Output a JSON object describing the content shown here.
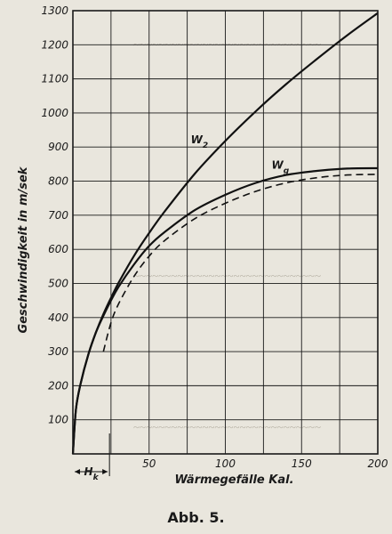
{
  "caption": "Abb. 5.",
  "chart_data": {
    "type": "line",
    "xlabel": "Wärmegefälle Kal.",
    "ylabel": "Geschwindigkeit in m/sek",
    "xlim": [
      0,
      200
    ],
    "ylim": [
      0,
      1300
    ],
    "xticks": [
      50,
      100,
      150,
      200
    ],
    "yticks": [
      100,
      200,
      300,
      400,
      500,
      600,
      700,
      800,
      900,
      1000,
      1100,
      1200,
      1300
    ],
    "grid": true,
    "annotation": {
      "label": "Hk",
      "x_from": 0,
      "x_to": 24
    },
    "series": [
      {
        "name": "W2",
        "style": "solid",
        "x": [
          0,
          2,
          5,
          10,
          15,
          20,
          25,
          30,
          40,
          50,
          60,
          80,
          100,
          120,
          140,
          160,
          180,
          200
        ],
        "y": [
          0,
          130,
          205,
          290,
          355,
          410,
          458,
          502,
          580,
          648,
          710,
          822,
          918,
          1005,
          1085,
          1158,
          1228,
          1293
        ]
      },
      {
        "name": "Wg",
        "style": "solid",
        "x": [
          0,
          2,
          5,
          10,
          15,
          20,
          25,
          30,
          40,
          50,
          60,
          80,
          100,
          120,
          140,
          160,
          180,
          200
        ],
        "y": [
          0,
          130,
          205,
          290,
          355,
          405,
          450,
          490,
          555,
          610,
          650,
          715,
          760,
          795,
          818,
          830,
          837,
          838
        ]
      },
      {
        "name": "",
        "style": "dashed",
        "x": [
          20,
          25,
          30,
          40,
          50,
          60,
          80,
          100,
          120,
          140,
          160,
          180,
          200
        ],
        "y": [
          300,
          385,
          440,
          520,
          580,
          625,
          690,
          735,
          770,
          795,
          810,
          818,
          820
        ]
      }
    ]
  }
}
